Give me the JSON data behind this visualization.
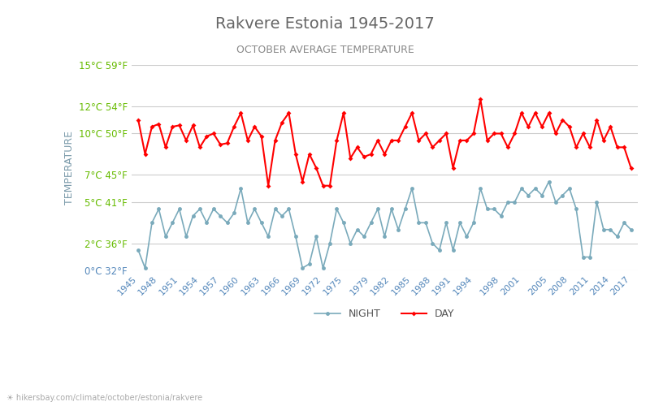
{
  "title": "Rakvere Estonia 1945-2017",
  "subtitle": "OCTOBER AVERAGE TEMPERATURE",
  "ylabel": "TEMPERATURE",
  "watermark": "hikersbay.com/climate/october/estonia/rakvere",
  "title_color": "#666666",
  "subtitle_color": "#888888",
  "ylabel_color": "#7a9aaa",
  "background_color": "#ffffff",
  "grid_color": "#cccccc",
  "ytick_color_green": "#66bb00",
  "ytick_color_blue": "#5588bb",
  "day_color": "#ff0000",
  "night_color": "#7aaabb",
  "years": [
    1945,
    1946,
    1947,
    1948,
    1949,
    1950,
    1951,
    1952,
    1953,
    1954,
    1955,
    1956,
    1957,
    1958,
    1959,
    1960,
    1961,
    1962,
    1963,
    1964,
    1965,
    1966,
    1967,
    1968,
    1969,
    1970,
    1971,
    1972,
    1973,
    1974,
    1975,
    1976,
    1977,
    1978,
    1979,
    1980,
    1981,
    1982,
    1983,
    1984,
    1985,
    1986,
    1987,
    1988,
    1989,
    1990,
    1991,
    1992,
    1993,
    1994,
    1995,
    1996,
    1997,
    1998,
    1999,
    2000,
    2001,
    2002,
    2003,
    2004,
    2005,
    2006,
    2007,
    2008,
    2009,
    2010,
    2011,
    2012,
    2013,
    2014,
    2015,
    2016,
    2017
  ],
  "day_temps": [
    11.0,
    8.5,
    10.5,
    10.7,
    9.0,
    10.5,
    10.6,
    9.5,
    10.6,
    9.0,
    9.8,
    10.0,
    9.2,
    9.3,
    10.5,
    11.5,
    9.5,
    10.5,
    9.8,
    6.2,
    9.5,
    10.8,
    11.5,
    8.5,
    6.5,
    8.5,
    7.5,
    6.2,
    6.2,
    9.5,
    11.5,
    8.2,
    9.0,
    8.3,
    8.5,
    9.5,
    8.5,
    9.5,
    9.5,
    10.5,
    11.5,
    9.5,
    10.0,
    9.0,
    9.5,
    10.0,
    7.5,
    9.5,
    9.5,
    10.0,
    12.5,
    9.5,
    10.0,
    10.0,
    9.0,
    10.0,
    11.5,
    10.5,
    11.5,
    10.5,
    11.5,
    10.0,
    11.0,
    10.5,
    9.0,
    10.0,
    9.0,
    11.0,
    9.5,
    10.5,
    9.0,
    9.0,
    7.5
  ],
  "night_temps": [
    1.5,
    0.2,
    3.5,
    4.5,
    2.5,
    3.5,
    4.5,
    2.5,
    4.0,
    4.5,
    3.5,
    4.5,
    4.0,
    3.5,
    4.2,
    6.0,
    3.5,
    4.5,
    3.5,
    2.5,
    4.5,
    4.0,
    4.5,
    2.5,
    0.2,
    0.5,
    2.5,
    0.2,
    2.0,
    4.5,
    3.5,
    2.0,
    3.0,
    2.5,
    3.5,
    4.5,
    2.5,
    4.5,
    3.0,
    4.5,
    6.0,
    3.5,
    3.5,
    2.0,
    1.5,
    3.5,
    1.5,
    3.5,
    2.5,
    3.5,
    6.0,
    4.5,
    4.5,
    4.0,
    5.0,
    5.0,
    6.0,
    5.5,
    6.0,
    5.5,
    6.5,
    5.0,
    5.5,
    6.0,
    4.5,
    1.0,
    1.0,
    5.0,
    3.0,
    3.0,
    2.5,
    3.5,
    3.0
  ],
  "yticks_celsius": [
    0,
    2,
    5,
    7,
    10,
    12,
    15
  ],
  "ytick_labels": [
    "0°C 32°F",
    "2°C 36°F",
    "5°C 41°F",
    "7°C 45°F",
    "10°C 50°F",
    "12°C 54°F",
    "15°C 59°F"
  ],
  "xtick_years": [
    1945,
    1948,
    1951,
    1954,
    1957,
    1960,
    1963,
    1966,
    1969,
    1972,
    1975,
    1979,
    1982,
    1985,
    1988,
    1991,
    1994,
    1998,
    2001,
    2005,
    2008,
    2011,
    2014,
    2017
  ],
  "ylim": [
    0,
    15
  ],
  "legend_night_label": "NIGHT",
  "legend_day_label": "DAY"
}
